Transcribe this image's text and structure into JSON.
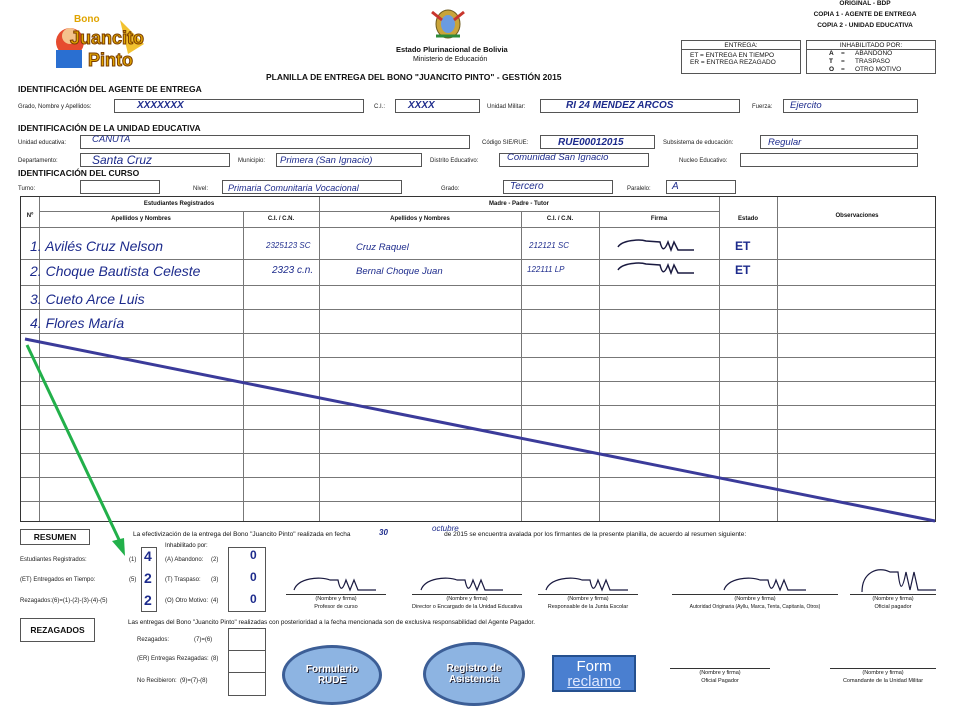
{
  "header": {
    "logo_text_1": "Bono",
    "logo_text_2": "Juancito",
    "logo_text_3": "Pinto",
    "state_name": "Estado Plurinacional de Bolivia",
    "ministry": "Ministerio de Educación",
    "doc_title": "PLANILLA DE ENTREGA DEL BONO \"JUANCITO PINTO\" - GESTIÓN 2015",
    "copies": [
      "ORIGINAL - BDP",
      "COPIA 1 - AGENTE DE ENTREGA",
      "COPIA 2 - UNIDAD EDUCATIVA"
    ],
    "legend_entrega_title": "ENTREGA:",
    "legend_entrega": [
      "ET = ENTREGA EN TIEMPO",
      "ER = ENTREGA REZAGADO"
    ],
    "legend_inhab_title": "INHABILITADO POR:",
    "legend_inhab": [
      {
        "code": "A",
        "eq": "=",
        "text": "ABANDONO"
      },
      {
        "code": "T",
        "eq": "=",
        "text": "TRASPASO"
      },
      {
        "code": "O",
        "eq": "=",
        "text": "OTRO MOTIVO"
      }
    ]
  },
  "agente": {
    "section": "IDENTIFICACIÓN DEL AGENTE DE ENTREGA",
    "lbl_nombre": "Grado, Nombre y Apellidos:",
    "nombre": "XXXXXXX",
    "lbl_ci": "C.I.:",
    "ci": "XXXX",
    "lbl_unidad": "Unidad Militar:",
    "unidad": "RI 24 MENDEZ ARCOS",
    "lbl_fuerza": "Fuerza:",
    "fuerza": "Ejercito"
  },
  "unidad": {
    "section": "IDENTIFICACIÓN DE LA UNIDAD EDUCATIVA",
    "lbl_ue": "Unidad educativa:",
    "ue": "CANUTA",
    "lbl_sie": "Código SIE/RUE:",
    "sie": "RUE00012015",
    "lbl_subsistema": "Subsistema de educación:",
    "subsistema": "Regular",
    "lbl_depto": "Departamento:",
    "depto": "Santa Cruz",
    "lbl_municipio": "Municipio:",
    "municipio": "Primera (San Ignacio)",
    "lbl_distrito": "Distrito Educativo:",
    "distrito": "Comunidad San Ignacio",
    "lbl_nucleo": "Nucleo Educativo:"
  },
  "curso": {
    "section": "IDENTIFICACIÓN DEL CURSO",
    "lbl_turno": "Turno:",
    "lbl_nivel": "Nivel:",
    "nivel": "Primaria Comunitaria Vocacional",
    "lbl_grado": "Grado:",
    "grado": "Tercero",
    "lbl_paralelo": "Paralelo:",
    "paralelo": "A"
  },
  "table": {
    "h_num": "Nº",
    "h_estudiantes": "Estudiantes Registrados",
    "h_apellidos": "Apellidos y Nombres",
    "h_ci": "C.I. / C.N.",
    "h_tutor": "Madre - Padre - Tutor",
    "h_tutor_apellidos": "Apellidos y Nombres",
    "h_tutor_ci": "C.I. / C.N.",
    "h_firma": "Firma",
    "h_estado": "Estado",
    "h_obs": "Observaciones",
    "rows": [
      {
        "num": "1.",
        "name": "Avilés Cruz Nelson",
        "ci": "2325123 SC",
        "tutor": "Cruz Raquel",
        "tutor_ci": "212121 SC",
        "estado": "ET"
      },
      {
        "num": "2.",
        "name": "Choque Bautista Celeste",
        "ci": "2323 c.n.",
        "tutor": "Bernal Choque Juan",
        "tutor_ci": "122111 LP",
        "estado": "ET"
      },
      {
        "num": "3.",
        "name": "Cueto Arce Luis",
        "ci": "",
        "tutor": "",
        "tutor_ci": "",
        "estado": ""
      },
      {
        "num": "4.",
        "name": "Flores María",
        "ci": "",
        "tutor": "",
        "tutor_ci": "",
        "estado": ""
      }
    ]
  },
  "resumen": {
    "title": "RESUMEN",
    "text_1": "La efectivización de la entrega del Bono \"Juancito Pinto\" realizada en fecha",
    "fecha_dia": "30",
    "fecha_mes": "octubre",
    "text_2": "de 2015 se encuentra avalada por los firmantes de la presente planilla, de acuerdo al resumen siguiente:",
    "inhab_label": "Inhabilitado por:",
    "items_left": [
      {
        "label": "Estudiantes Registrados:",
        "code": "(1)",
        "value": "4"
      },
      {
        "label": "(ET) Entregados en Tiempo:",
        "code": "(5)",
        "value": "2"
      },
      {
        "label": "Rezagados:(6)=(1)-(2)-(3)-(4)-(5)",
        "code": "",
        "value": "2"
      }
    ],
    "items_mid": [
      {
        "label": "(A) Abandono:",
        "code": "(2)",
        "value": "0"
      },
      {
        "label": "(T) Traspaso:",
        "code": "(3)",
        "value": "0"
      },
      {
        "label": "(O) Otro Motivo:",
        "code": "(4)",
        "value": "0"
      }
    ],
    "signers": [
      {
        "top": "(Nombre y firma)",
        "bottom": "Profesor de curso"
      },
      {
        "top": "(Nombre y firma)",
        "bottom": "Director o Encargado de la Unidad Educativa"
      },
      {
        "top": "(Nombre y firma)",
        "bottom": "Responsable de la Junta Escolar"
      },
      {
        "top": "(Nombre y firma)",
        "bottom": "Autoridad Originaria (Ayllu, Marca, Tenta, Capitanía, Otros)"
      },
      {
        "top": "(Nombre y firma)",
        "bottom": "Oficial pagador"
      }
    ]
  },
  "rezagados": {
    "title": "REZAGADOS",
    "text": "Las entregas del Bono \"Juancito Pinto\" realizadas con posterioridad a la fecha mencionada son de exclusiva responsabilidad del Agente Pagador.",
    "items": [
      {
        "label": "Rezagados:",
        "code": "(7)=(6)"
      },
      {
        "label": "(ER) Entregas Rezagadas:",
        "code": "(8)"
      },
      {
        "label": "No Recibieron:",
        "code": "(9)=(7)-(8)"
      }
    ],
    "signers": [
      {
        "top": "(Nombre y firma)",
        "bottom": "Oficial Pagador"
      },
      {
        "top": "(Nombre y firma)",
        "bottom": "Comandante de la Unidad Militar"
      }
    ]
  },
  "buttons": {
    "formulario_rude": "Formulario RUDE",
    "registro_asistencia": "Registro de Asistencia",
    "form_line1": "Form",
    "form_line2": "reclamo"
  },
  "colors": {
    "handwriting": "#1d2b8c",
    "blue_line": "#3b3b9a",
    "green_arrow": "#22b04a",
    "oval_fill": "#8db4e2",
    "button_fill": "#4a7fd0"
  }
}
